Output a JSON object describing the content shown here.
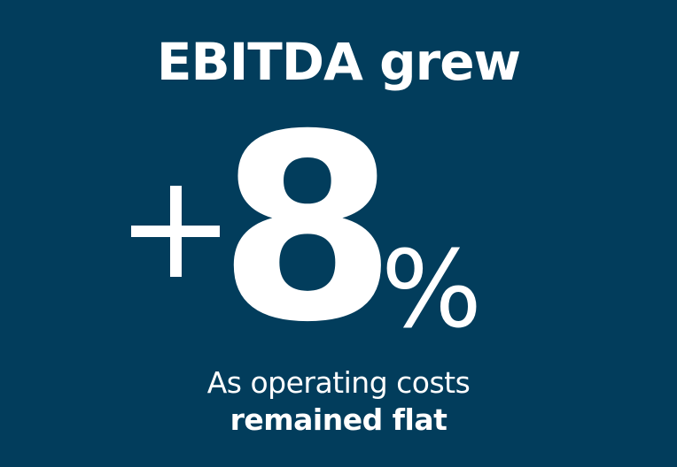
{
  "colors": {
    "background": "#023d5c",
    "text": "#ffffff"
  },
  "headline": "EBITDA grew",
  "metric": {
    "sign": "+",
    "value": "8",
    "unit": "%"
  },
  "caption": {
    "line1": "As operating costs",
    "line2": "remained flat"
  }
}
